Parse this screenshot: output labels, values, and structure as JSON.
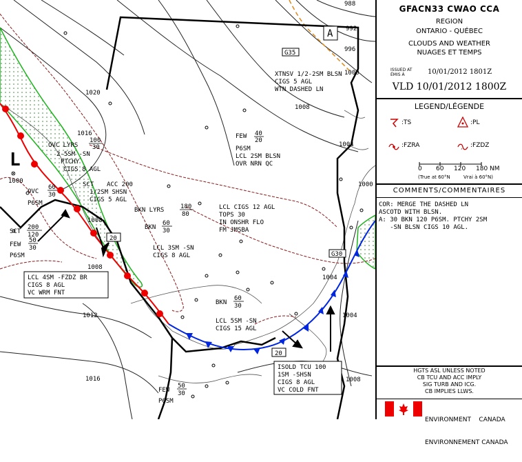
{
  "chart_code": "GFACN33 CWAO CCA",
  "region_label": "REGION",
  "region_name": "ONTARIO - QUÉBEC",
  "product_en": "CLOUDS AND WEATHER",
  "product_fr": "NUAGES ET TEMPS",
  "issued_label_en": "ISSUED AT",
  "issued_label_fr": "ÉMIS À",
  "issued_time": "10/01/2012 1801Z",
  "valid": "VLD 10/01/2012 1800Z",
  "legend_title": "LEGEND/LÉGENDE",
  "legend": {
    "ts": ":TS",
    "pl": ":PL",
    "fzra": ":FZRA",
    "fzdz": ":FZDZ"
  },
  "scale": {
    "ticks": [
      "0",
      "60",
      "120",
      "180"
    ],
    "unit": "NM",
    "note_en": "(True at 60°N",
    "note_fr": "Vrai à 60°N)"
  },
  "comments_title": "COMMENTS/COMMENTAIRES",
  "comments": [
    "COR: MERGE THE DASHED LN",
    "ASCOTD WITH BLSN.",
    "A: 30 BKN 120 P6SM. PTCHY 2SM",
    "   -SN BLSN CIGS 10 AGL."
  ],
  "notes": [
    "HGTS ASL UNLESS NOTED",
    "CB TCU AND ACC IMPLY",
    "SIG TURB AND ICG.",
    "CB IMPLIES LLWS."
  ],
  "agency_en": "ENVIRONMENT    CANADA",
  "agency_fr": "ENVIRONNEMENT CANADA",
  "isobars": [
    "1020",
    "1016",
    "1012",
    "1008",
    "1004",
    "1000",
    "988",
    "992",
    "996",
    "1020",
    "1012",
    "1016",
    "1016",
    "1008",
    "1004",
    "1000",
    "1004",
    "1008"
  ],
  "map_text": {
    "xtnsv": [
      "XTNSV 1/2-2SM BLSN",
      "CIGS 5 AGL",
      "WTN DASHED LN"
    ],
    "few40": [
      "FEW",
      "40",
      "20",
      "P6SM",
      "LCL 2SM BLSN",
      "OVR NRN QC"
    ],
    "bknlyrs": [
      "BKN LYRS",
      "180",
      "80"
    ],
    "lclcigs12": [
      "LCL CIGS 12 AGL",
      "TOPS 30",
      "IN ONSHR FLO",
      "FM JMSBA"
    ],
    "bkn60": [
      "BKN",
      "60",
      "30",
      "LCL 3SM -SN",
      "CIGS 8 AGL"
    ],
    "bkn60b": [
      "BKN",
      "60",
      "30",
      "LCL 5SM -SN",
      "CIGS 15 AGL"
    ],
    "ovclyrs": [
      "OVC LYRS",
      "100",
      "30",
      "2-5SM -SN",
      "PTCHY",
      "CIGS 8 AGL"
    ],
    "sctacc": [
      "SCT",
      "ACC 200",
      "1/2SM SHSN",
      "CIGS 5 AGL"
    ],
    "ovc60": [
      "OVC",
      "60",
      "30",
      "P6SM"
    ],
    "sct200": [
      "SCT",
      "200",
      "120"
    ],
    "few50": [
      "FEW",
      "50",
      "30",
      "P6SM"
    ],
    "few_bottom": [
      "FEW",
      "50",
      "30",
      "P6SM"
    ],
    "box_lcl": [
      "LCL 4SM -FZDZ BR",
      "CIGS 8 AGL",
      "VC WRM FNT"
    ],
    "box_isold": [
      "ISOLD TCU 100",
      "1SM -SHSN",
      "CIGS 8 AGL",
      "VC COLD FNT"
    ],
    "speed_20a": "20",
    "speed_20b": "20",
    "g30": "G30",
    "g35": "G35",
    "high_a": "A",
    "low_l": "L",
    "low_val": "1000",
    "x_mark": "⊗"
  }
}
